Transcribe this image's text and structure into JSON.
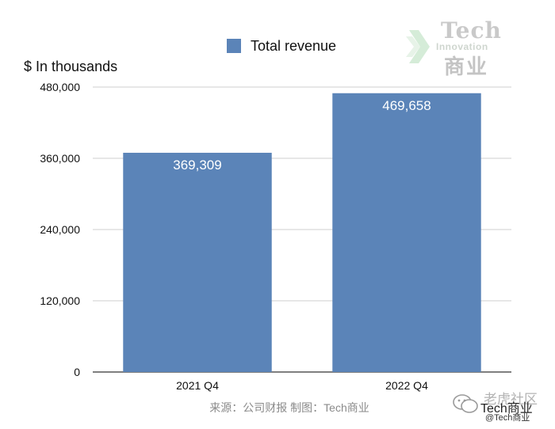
{
  "chart_data": {
    "type": "bar",
    "categories": [
      "2021 Q4",
      "2022 Q4"
    ],
    "series": [
      {
        "name": "Total revenue",
        "values": [
          369309,
          469658
        ]
      }
    ],
    "value_labels": [
      "369,309",
      "469,658"
    ],
    "ylabel": "$ In thousands",
    "ylim": [
      0,
      480000
    ],
    "yticks": [
      0,
      120000,
      240000,
      360000,
      480000
    ],
    "ytick_labels": [
      "0",
      "120,000",
      "240,000",
      "360,000",
      "480,000"
    ],
    "grid": true,
    "legend_position": "top",
    "bar_color": "#5b84b8"
  },
  "source": "来源：公司财报 制图：Tech商业",
  "logo": {
    "top": "Tech",
    "middle": "Innovation",
    "bottom": "商业"
  },
  "watermark": {
    "top": "老虎社区",
    "middle": "Tech商业",
    "bottom": "@Tech商业"
  }
}
